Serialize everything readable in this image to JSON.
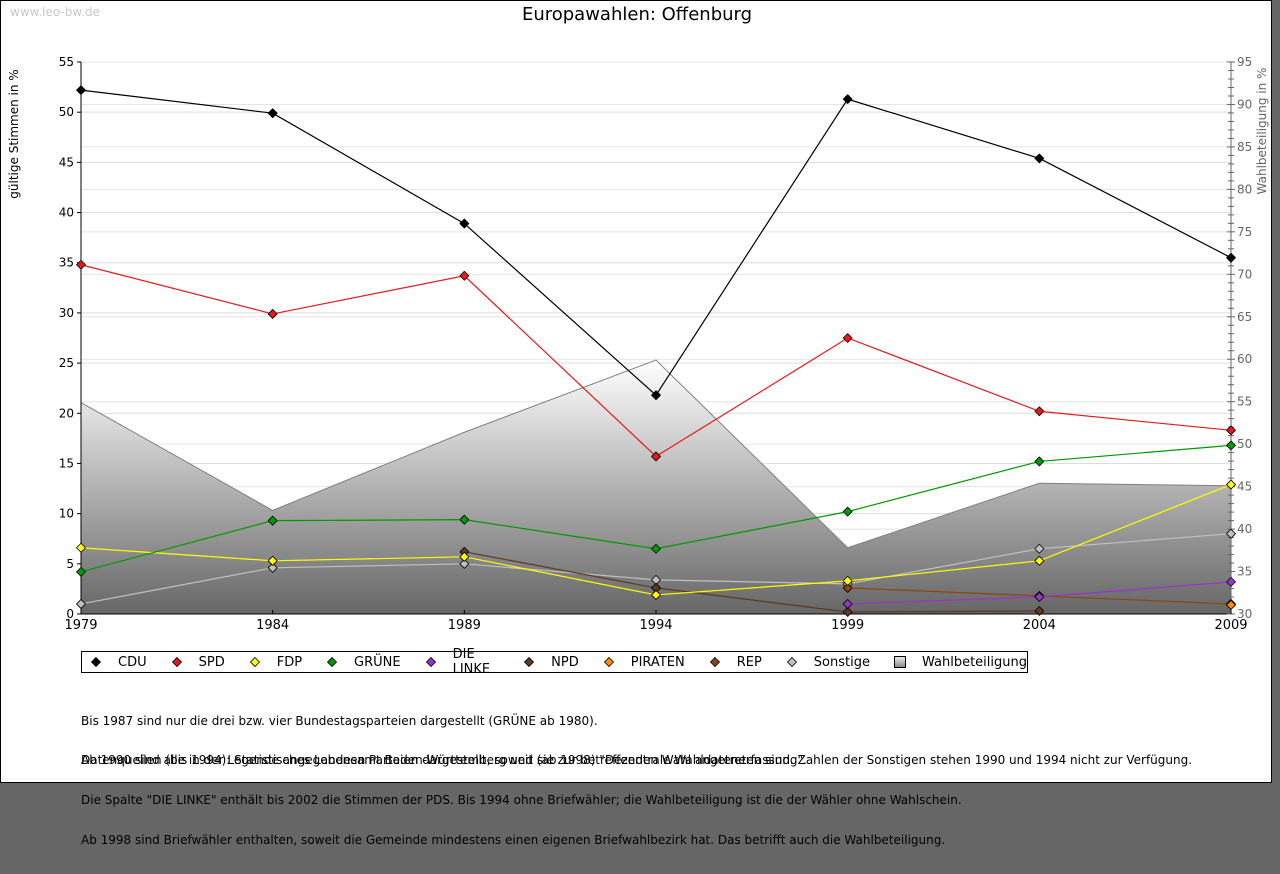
{
  "watermark": "www.leo-bw.de",
  "chart_data": {
    "type": "line",
    "title": "Europawahlen: Offenburg",
    "xlabel": "",
    "ylabel": "gültige Stimmen in %",
    "y2label": "Wahlbeteiligung in %",
    "x": [
      1979,
      1984,
      1989,
      1994,
      1999,
      2004,
      2009
    ],
    "x_tick_labels": [
      "1979",
      "1984",
      "1989",
      "1994",
      "1999",
      "2004",
      "2009"
    ],
    "ylim": [
      0,
      55
    ],
    "y_ticks": [
      "0",
      "5",
      "10",
      "15",
      "20",
      "25",
      "30",
      "35",
      "40",
      "45",
      "50",
      "55"
    ],
    "y2lim": [
      30,
      95
    ],
    "y2_ticks": [
      "30",
      "35",
      "40",
      "45",
      "50",
      "55",
      "60",
      "65",
      "70",
      "75",
      "80",
      "85",
      "90",
      "95"
    ],
    "grid": true,
    "legend_position": "bottom",
    "turnout": {
      "name": "Wahlbeteiligung",
      "type": "area",
      "axis": "right",
      "values": [
        54.9,
        42.2,
        51.4,
        59.9,
        37.8,
        45.4,
        45.1
      ]
    },
    "series": [
      {
        "name": "CDU",
        "color": "#000000",
        "values": [
          52.2,
          49.9,
          38.9,
          21.8,
          51.3,
          45.4,
          35.5
        ]
      },
      {
        "name": "SPD",
        "color": "#e31a1c",
        "values": [
          34.8,
          29.9,
          33.7,
          15.7,
          27.5,
          20.2,
          18.3
        ]
      },
      {
        "name": "FDP",
        "color": "#ffff00",
        "values": [
          6.6,
          5.3,
          5.7,
          1.9,
          3.3,
          5.3,
          12.9
        ]
      },
      {
        "name": "GRÜNE",
        "color": "#009900",
        "values": [
          4.2,
          9.3,
          9.4,
          6.5,
          10.2,
          15.2,
          16.8
        ]
      },
      {
        "name": "DIE LINKE",
        "color": "#9933cc",
        "values": [
          null,
          null,
          null,
          null,
          1.0,
          1.7,
          3.2
        ]
      },
      {
        "name": "NPD",
        "color": "#5c3a21",
        "values": [
          null,
          null,
          6.2,
          2.6,
          0.2,
          0.3,
          null
        ]
      },
      {
        "name": "PIRATEN",
        "color": "#ff8c00",
        "values": [
          null,
          null,
          null,
          null,
          null,
          null,
          0.9
        ]
      },
      {
        "name": "REP",
        "color": "#8b4513",
        "values": [
          null,
          null,
          null,
          null,
          2.6,
          1.8,
          1.0
        ]
      },
      {
        "name": "Sonstige",
        "color": "#c0c0c0",
        "values": [
          1.0,
          4.6,
          5.0,
          3.4,
          3.0,
          6.5,
          8.0
        ]
      }
    ]
  },
  "legend": [
    {
      "label": "CDU",
      "color": "#000000",
      "shape": "diamond"
    },
    {
      "label": "SPD",
      "color": "#e31a1c",
      "shape": "diamond"
    },
    {
      "label": "FDP",
      "color": "#ffff00",
      "shape": "diamond"
    },
    {
      "label": "GRÜNE",
      "color": "#009900",
      "shape": "diamond"
    },
    {
      "label": "DIE LINKE",
      "color": "#9933cc",
      "shape": "diamond"
    },
    {
      "label": "NPD",
      "color": "#5c3a21",
      "shape": "diamond"
    },
    {
      "label": "PIRATEN",
      "color": "#ff8c00",
      "shape": "diamond"
    },
    {
      "label": "REP",
      "color": "#8b4513",
      "shape": "diamond"
    },
    {
      "label": "Sonstige",
      "color": "#c0c0c0",
      "shape": "diamond"
    },
    {
      "label": "Wahlbeteiligung",
      "color": "#b0b0b0",
      "shape": "square"
    }
  ],
  "notes": [
    "Bis 1987 sind nur die drei bzw. vier Bundestagsparteien dargestellt (GRÜNE ab 1980).",
    "Ab 1990 sind alle in der Legende angegebenen Parteien dargestellt, soweit sie zur betreffenden Wahl angetreten sind. Zahlen der Sonstigen stehen 1990 und 1994 nicht zur Verfügung.",
    "Die Spalte \"DIE LINKE\" enthält bis 2002 die Stimmen der PDS. Bis 1994 ohne Briefwähler; die Wahlbeteiligung ist die der Wähler ohne Wahlschein.",
    "Ab 1998 sind Briefwähler enthalten, soweit die Gemeinde mindestens einen eigenen Briefwahlbezirk hat. Das betrifft auch die Wahlbeteiligung."
  ],
  "sources": "Datenquellen (bis 1994): Statistisches Landesamt Baden-Württemberg und (ab 1998) \"Dezentrale Wahldatenerfassung\"."
}
